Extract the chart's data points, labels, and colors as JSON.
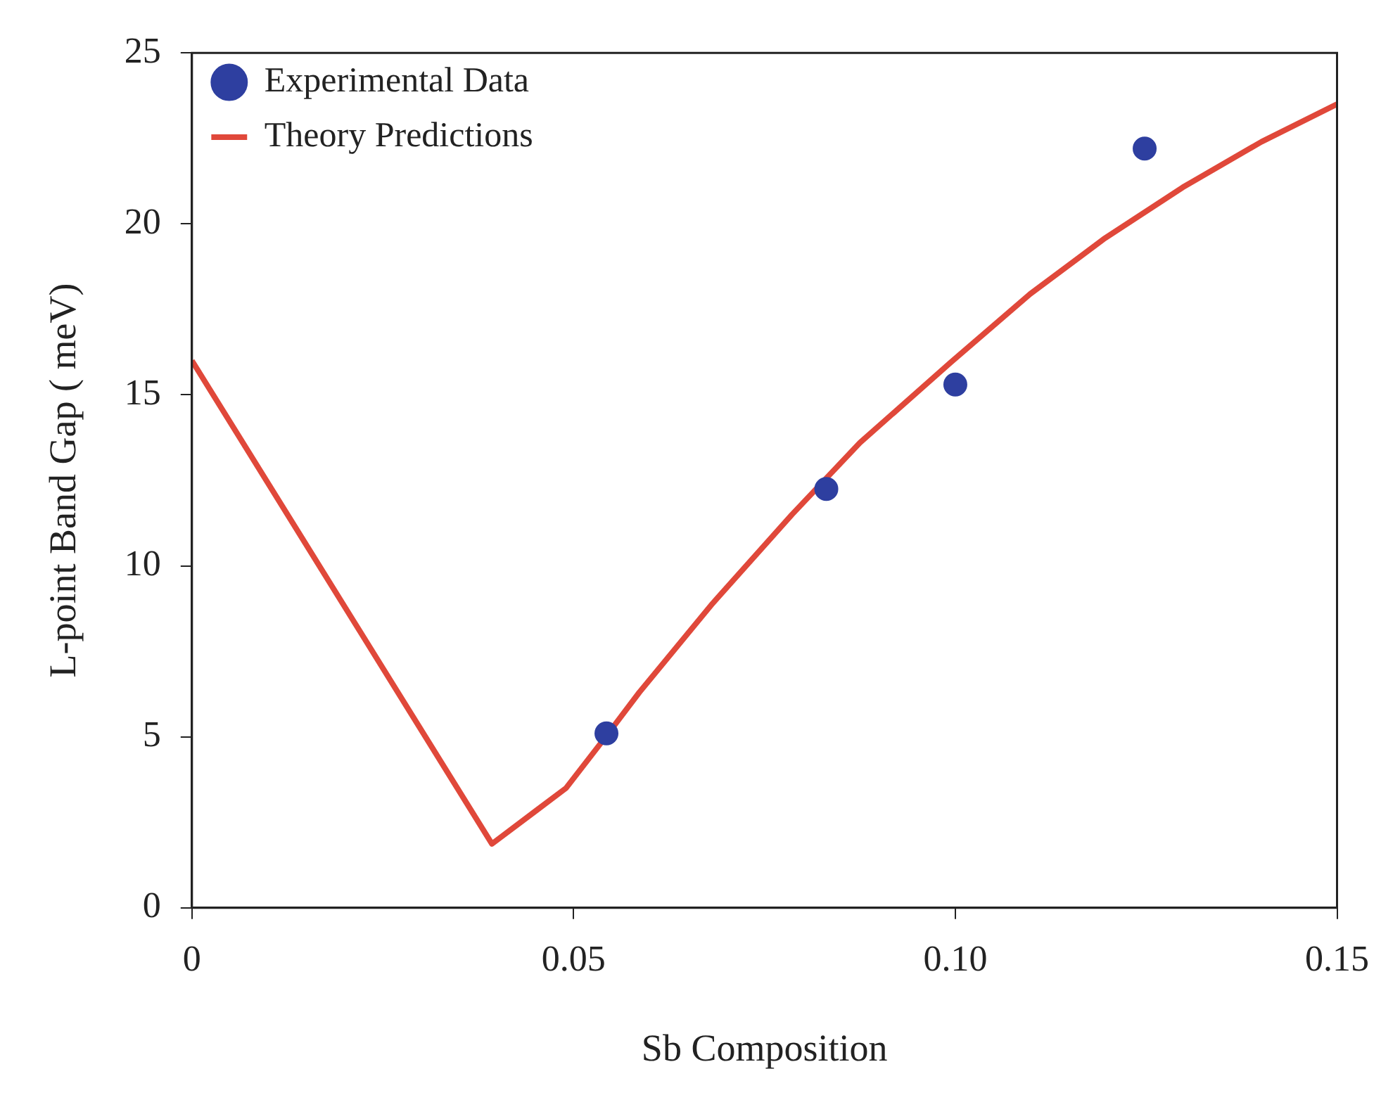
{
  "chart_data": {
    "type": "scatter",
    "xlabel": "Sb Composition",
    "ylabel": "L-point Band Gap ( meV)",
    "xlim": [
      0,
      0.15
    ],
    "xticks": [
      0,
      0.05,
      {
        "value": 0.1,
        "label": "0.10"
      },
      0.15
    ],
    "ylim": [
      0,
      25
    ],
    "yticks": [
      0,
      5,
      10,
      15,
      20,
      25
    ],
    "legend": "top left",
    "series": [
      {
        "name": "Experimental Data",
        "marker": "circle",
        "color": "#2e3fa0",
        "x": [
          0.0543,
          0.0831,
          0.1,
          0.1248
        ],
        "values": [
          5.1,
          12.25,
          15.3,
          22.2
        ]
      },
      {
        "name": "Theory Predictions",
        "type": "line",
        "marker": "none",
        "color": "#e0483a",
        "x": [
          0,
          0.0393,
          0.049,
          0.0541,
          0.0586,
          0.0682,
          0.0786,
          0.0875,
          0.0994,
          0.1098,
          0.1194,
          0.1298,
          0.1401,
          0.15
        ],
        "values": [
          16,
          1.87,
          3.5,
          4.97,
          6.3,
          8.9,
          11.5,
          13.6,
          15.95,
          17.95,
          19.55,
          21.07,
          22.4,
          23.5
        ]
      }
    ]
  }
}
